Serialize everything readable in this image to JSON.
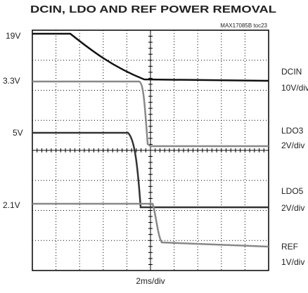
{
  "header": {
    "title": "DCIN, LDO AND REF POWER REMOVAL",
    "code": "MAX17085B toc23"
  },
  "left_labels": [
    "19V",
    "3.3V",
    "5V",
    "2.1V"
  ],
  "channels": [
    {
      "name": "DCIN",
      "scale": "10V/div"
    },
    {
      "name": "LDO3",
      "scale": "2V/div"
    },
    {
      "name": "LDO5",
      "scale": "2V/div"
    },
    {
      "name": "REF",
      "scale": "1V/div"
    }
  ],
  "time_scale": "2ms/div"
}
